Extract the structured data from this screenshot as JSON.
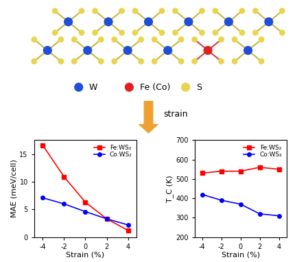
{
  "diagram": {
    "legend": [
      {
        "label": "W",
        "color": "#1f4fd8"
      },
      {
        "label": "Fe (Co)",
        "color": "#e02020"
      },
      {
        "label": "S",
        "color": "#e8d44d"
      }
    ],
    "arrow_label": "strain"
  },
  "chart_data": [
    {
      "type": "line",
      "x_label": "Strain (%)",
      "y_label": "MAE (meV/cell)",
      "x": [
        -4,
        -2,
        0,
        2,
        4
      ],
      "series": [
        {
          "name": "Fe:WS₂",
          "color": "#ff0000",
          "marker": "square",
          "values": [
            16.6,
            10.9,
            6.3,
            3.3,
            1.2
          ]
        },
        {
          "name": "Co:WS₂",
          "color": "#0000ff",
          "marker": "circle",
          "values": [
            7.1,
            6.0,
            4.6,
            3.3,
            2.2
          ]
        }
      ],
      "xlim": [
        -4.8,
        4.8
      ],
      "xticks": [
        -4,
        -2,
        0,
        2,
        4
      ],
      "ylim": [
        0,
        17.5
      ],
      "yticks": [
        0,
        5,
        10,
        15
      ],
      "grid": false,
      "legend": "upper right"
    },
    {
      "type": "line",
      "x_label": "Strain (%)",
      "y_label": "T_C (K)",
      "x": [
        -4,
        -2,
        0,
        2,
        4
      ],
      "series": [
        {
          "name": "Fe:WS₂",
          "color": "#ff0000",
          "marker": "square",
          "values": [
            530,
            540,
            540,
            560,
            550
          ]
        },
        {
          "name": "Co:WS₂",
          "color": "#0000ff",
          "marker": "circle",
          "values": [
            420,
            390,
            370,
            320,
            310
          ]
        }
      ],
      "xlim": [
        -4.8,
        4.8
      ],
      "xticks": [
        -4,
        -2,
        0,
        2,
        4
      ],
      "ylim": [
        200,
        700
      ],
      "yticks": [
        200,
        300,
        400,
        500,
        600,
        700
      ],
      "grid": false,
      "legend": "upper right"
    }
  ]
}
